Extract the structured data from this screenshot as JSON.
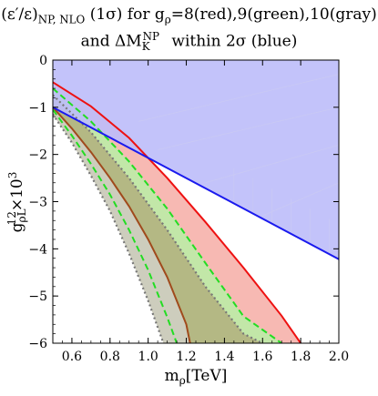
{
  "chart_data": {
    "type": "area",
    "title_line1": "(ε′/ε)NP, NLO (1σ) for gρ=8(red),9(green),10(gray)",
    "title_line2": "and ΔMKNP within 2σ (blue)",
    "xlabel": "mρ[TeV]",
    "ylabel": "gρL12×10³",
    "xlim": [
      0.5,
      2.0
    ],
    "ylim": [
      -6,
      0
    ],
    "xticks": [
      0.6,
      0.8,
      1.0,
      1.2,
      1.4,
      1.6,
      1.8,
      2.0
    ],
    "xtick_labels": [
      "0.6",
      "0.8",
      "1.0",
      "1.2",
      "1.4",
      "1.6",
      "1.8",
      "2.0"
    ],
    "yticks": [
      0,
      -1,
      -2,
      -3,
      -4,
      -5,
      -6
    ],
    "ytick_labels": [
      "0",
      "−1",
      "−2",
      "−3",
      "−4",
      "−5",
      "−6"
    ],
    "grid": false,
    "colors": {
      "red": "#ee1111",
      "red_fill": "#f7b9b3",
      "green": "#22dd22",
      "green_fill": "#c2e7a8",
      "gray": "#777777",
      "gray_fill": "#cdcdbd",
      "brown": "#a04a1c",
      "olive_fill": "#b4b884",
      "blue": "#1a1aee",
      "blue_fill": "#bdbdfa"
    },
    "series": [
      {
        "name": "red",
        "style": "solid",
        "x": [
          0.5,
          0.7,
          0.9,
          1.1,
          1.3,
          1.5,
          1.7,
          1.8
        ],
        "y": [
          -0.47,
          -0.98,
          -1.65,
          -2.5,
          -3.43,
          -4.4,
          -5.42,
          -6.0
        ]
      },
      {
        "name": "green",
        "style": "dashed",
        "x": [
          0.5,
          0.7,
          0.9,
          1.1,
          1.3,
          1.5,
          1.7
        ],
        "y": [
          -0.6,
          -1.3,
          -2.15,
          -3.15,
          -4.3,
          -5.43,
          -6.0
        ]
      },
      {
        "name": "gray",
        "style": "dotted",
        "x": [
          0.5,
          0.7,
          0.9,
          1.1,
          1.3,
          1.5,
          1.6
        ],
        "y": [
          -0.74,
          -1.53,
          -2.5,
          -3.6,
          -4.8,
          -5.8,
          -6.0
        ]
      },
      {
        "name": "red",
        "style": "solid",
        "x": [
          0.5,
          0.6,
          0.7,
          0.8,
          0.9,
          1.0,
          1.1,
          1.2,
          1.22
        ],
        "y": [
          -1.0,
          -1.45,
          -1.95,
          -2.5,
          -3.1,
          -3.8,
          -4.6,
          -5.6,
          -6.0
        ]
      },
      {
        "name": "green",
        "style": "dashed",
        "x": [
          0.5,
          0.6,
          0.7,
          0.8,
          0.9,
          1.0,
          1.1,
          1.15
        ],
        "y": [
          -1.05,
          -1.6,
          -2.2,
          -2.85,
          -3.6,
          -4.45,
          -5.45,
          -6.0
        ]
      },
      {
        "name": "gray",
        "style": "dotted",
        "x": [
          0.5,
          0.6,
          0.7,
          0.8,
          0.9,
          1.0,
          1.08
        ],
        "y": [
          -1.15,
          -1.75,
          -2.45,
          -3.2,
          -4.1,
          -5.1,
          -6.0
        ]
      },
      {
        "name": "blue",
        "style": "solid",
        "x": [
          0.5,
          2.0
        ],
        "y": [
          -1.0,
          -4.22
        ]
      }
    ]
  }
}
